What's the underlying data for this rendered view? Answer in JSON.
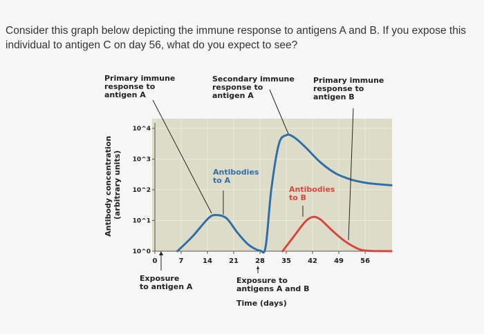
{
  "question": "Consider this graph below depicting the immune response to antigens A and B. If you expose this individual to antigen C on day 56, what do you expect to see?",
  "colors": {
    "antibodies_a": "#2f6fa8",
    "antibodies_b": "#d8453b",
    "plot_background": "#dcdcc8"
  },
  "annotations": {
    "primary_a": [
      "Primary immune",
      "response to",
      "antigen A"
    ],
    "secondary_a": [
      "Secondary immune",
      "response to",
      "antigen A"
    ],
    "primary_b": [
      "Primary immune",
      "response to",
      "antigen B"
    ],
    "antibodies_a": [
      "Antibodies",
      "to A"
    ],
    "antibodies_b": [
      "Antibodies",
      "to B"
    ],
    "exposure_a": [
      "Exposure",
      "to antigen A"
    ],
    "exposure_ab": [
      "Exposure to",
      "antigens A and B"
    ]
  },
  "chart_data": {
    "type": "line",
    "xlabel": "Time (days)",
    "ylabel": [
      "Antibody concentration",
      "(arbitrary units)"
    ],
    "x_ticks": [
      0,
      7,
      14,
      21,
      28,
      35,
      42,
      49,
      56
    ],
    "y_ticks": [
      "10^0",
      "10^1",
      "10^2",
      "10^3",
      "10^4"
    ],
    "y_scale": "log",
    "xlim": [
      0,
      63
    ],
    "ylim": [
      1,
      10000
    ],
    "series": [
      {
        "name": "Antibodies to A",
        "color": "#2f6fa8",
        "points": [
          [
            6,
            1
          ],
          [
            10,
            3
          ],
          [
            14,
            11
          ],
          [
            16,
            15
          ],
          [
            19,
            12
          ],
          [
            22,
            4
          ],
          [
            25,
            1.6
          ],
          [
            28,
            1.05
          ],
          [
            29.5,
            1.4
          ],
          [
            31,
            100
          ],
          [
            33,
            3000
          ],
          [
            35,
            6000
          ],
          [
            37,
            5200
          ],
          [
            40,
            2500
          ],
          [
            44,
            800
          ],
          [
            48,
            350
          ],
          [
            52,
            220
          ],
          [
            56,
            170
          ],
          [
            60,
            150
          ],
          [
            63,
            140
          ]
        ]
      },
      {
        "name": "Antibodies to B",
        "color": "#d8453b",
        "points": [
          [
            34,
            1
          ],
          [
            37,
            3
          ],
          [
            40,
            9
          ],
          [
            42,
            13
          ],
          [
            44,
            11
          ],
          [
            47,
            5
          ],
          [
            50,
            2.4
          ],
          [
            53,
            1.4
          ],
          [
            56,
            1.05
          ],
          [
            63,
            1
          ]
        ]
      }
    ]
  }
}
